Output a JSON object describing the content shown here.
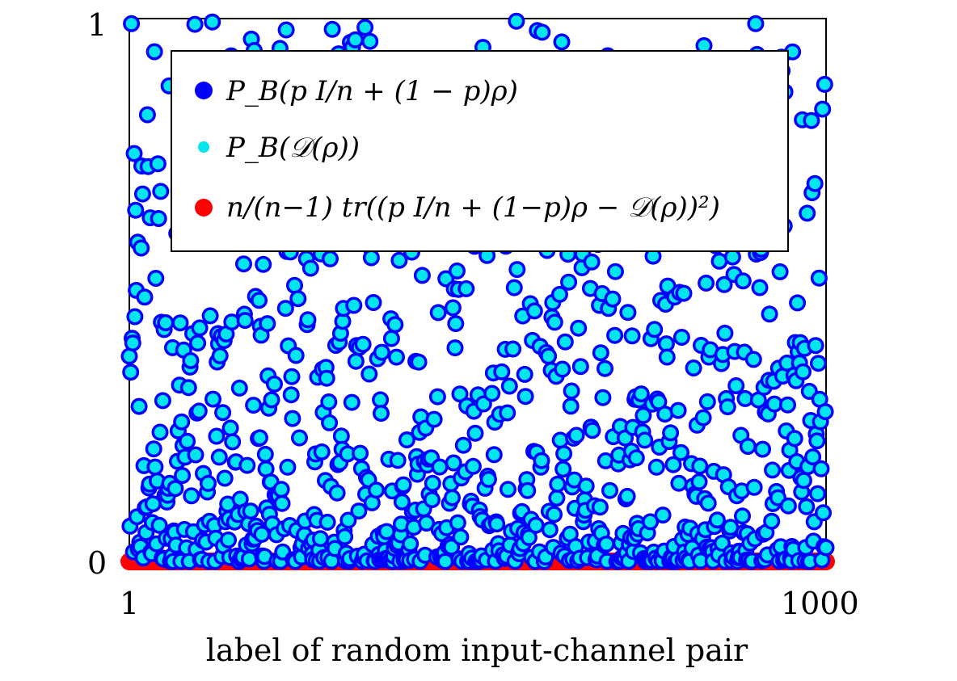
{
  "chart_data": {
    "type": "scatter",
    "title": "",
    "xlabel": "label of random input-channel pair",
    "ylabel": "",
    "xlim": [
      1,
      1000
    ],
    "ylim": [
      0,
      1
    ],
    "xticks": [
      "1",
      "1000"
    ],
    "yticks": [
      "0",
      "1"
    ],
    "grid": false,
    "legend_position": "top-center",
    "series": [
      {
        "name": "P_B(p I/n + (1 − p)ρ)",
        "marker": "large-circle",
        "color": "#0000ff",
        "generator": "pseudo-random scatter, 1000 points, denser near 0",
        "count": 1000
      },
      {
        "name": "P_B(𝒟(ρ))",
        "marker": "small-dot",
        "color": "#00e5ee",
        "generator": "same values as series 1 (overlapping)",
        "count": 1000
      },
      {
        "name": "n/(n−1) tr((p I/n + (1−p)ρ − 𝒟(ρ))²)",
        "marker": "large-circle",
        "color": "#ff0000",
        "value": 0,
        "count": 1000
      }
    ]
  },
  "legend": {
    "entries": [
      "P_B(p I/n + (1 − p)ρ)",
      "P_B(𝒟(ρ))",
      "n/(n−1) tr((p I/n + (1−p)ρ − 𝒟(ρ))²)"
    ]
  }
}
